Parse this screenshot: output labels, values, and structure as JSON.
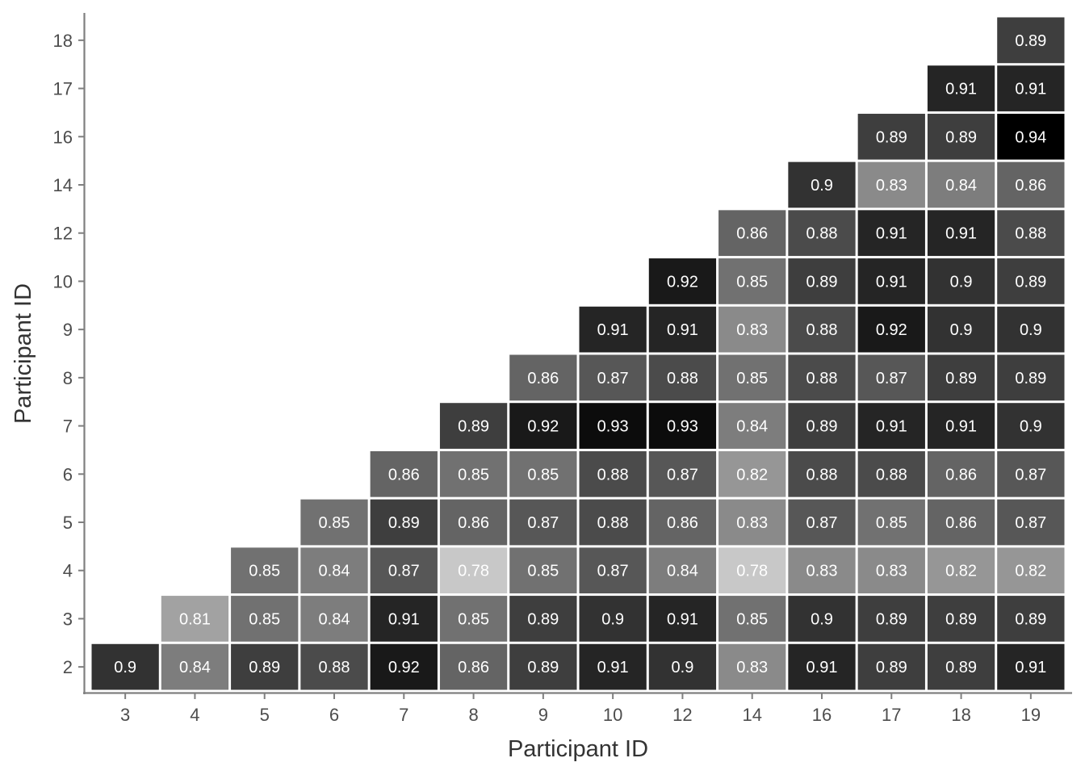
{
  "chart_data": {
    "type": "heatmap",
    "xlabel": "Participant ID",
    "ylabel": "Participant ID",
    "x_categories": [
      "3",
      "4",
      "5",
      "6",
      "7",
      "8",
      "9",
      "10",
      "12",
      "14",
      "16",
      "17",
      "18",
      "19"
    ],
    "y_categories": [
      "2",
      "3",
      "4",
      "5",
      "6",
      "7",
      "8",
      "9",
      "10",
      "12",
      "14",
      "16",
      "17",
      "18"
    ],
    "color_scale": "grayscale, darker = higher value",
    "grid": false,
    "legend": "none",
    "cells": [
      {
        "x": "3",
        "y": "2",
        "v": 0.9
      },
      {
        "x": "4",
        "y": "2",
        "v": 0.84
      },
      {
        "x": "4",
        "y": "3",
        "v": 0.81
      },
      {
        "x": "5",
        "y": "2",
        "v": 0.89
      },
      {
        "x": "5",
        "y": "3",
        "v": 0.85
      },
      {
        "x": "5",
        "y": "4",
        "v": 0.85
      },
      {
        "x": "6",
        "y": "2",
        "v": 0.88
      },
      {
        "x": "6",
        "y": "3",
        "v": 0.84
      },
      {
        "x": "6",
        "y": "4",
        "v": 0.84
      },
      {
        "x": "6",
        "y": "5",
        "v": 0.85
      },
      {
        "x": "7",
        "y": "2",
        "v": 0.92
      },
      {
        "x": "7",
        "y": "3",
        "v": 0.91
      },
      {
        "x": "7",
        "y": "4",
        "v": 0.87
      },
      {
        "x": "7",
        "y": "5",
        "v": 0.89
      },
      {
        "x": "7",
        "y": "6",
        "v": 0.86
      },
      {
        "x": "8",
        "y": "2",
        "v": 0.86
      },
      {
        "x": "8",
        "y": "3",
        "v": 0.85
      },
      {
        "x": "8",
        "y": "4",
        "v": 0.78
      },
      {
        "x": "8",
        "y": "5",
        "v": 0.86
      },
      {
        "x": "8",
        "y": "6",
        "v": 0.85
      },
      {
        "x": "8",
        "y": "7",
        "v": 0.89
      },
      {
        "x": "9",
        "y": "2",
        "v": 0.89
      },
      {
        "x": "9",
        "y": "3",
        "v": 0.89
      },
      {
        "x": "9",
        "y": "4",
        "v": 0.85
      },
      {
        "x": "9",
        "y": "5",
        "v": 0.87
      },
      {
        "x": "9",
        "y": "6",
        "v": 0.85
      },
      {
        "x": "9",
        "y": "7",
        "v": 0.92
      },
      {
        "x": "9",
        "y": "8",
        "v": 0.86
      },
      {
        "x": "10",
        "y": "2",
        "v": 0.91
      },
      {
        "x": "10",
        "y": "3",
        "v": 0.9
      },
      {
        "x": "10",
        "y": "4",
        "v": 0.87
      },
      {
        "x": "10",
        "y": "5",
        "v": 0.88
      },
      {
        "x": "10",
        "y": "6",
        "v": 0.88
      },
      {
        "x": "10",
        "y": "7",
        "v": 0.93
      },
      {
        "x": "10",
        "y": "8",
        "v": 0.87
      },
      {
        "x": "10",
        "y": "9",
        "v": 0.91
      },
      {
        "x": "12",
        "y": "2",
        "v": 0.9
      },
      {
        "x": "12",
        "y": "3",
        "v": 0.91
      },
      {
        "x": "12",
        "y": "4",
        "v": 0.84
      },
      {
        "x": "12",
        "y": "5",
        "v": 0.86
      },
      {
        "x": "12",
        "y": "6",
        "v": 0.87
      },
      {
        "x": "12",
        "y": "7",
        "v": 0.93
      },
      {
        "x": "12",
        "y": "8",
        "v": 0.88
      },
      {
        "x": "12",
        "y": "9",
        "v": 0.91
      },
      {
        "x": "12",
        "y": "10",
        "v": 0.92
      },
      {
        "x": "14",
        "y": "2",
        "v": 0.83
      },
      {
        "x": "14",
        "y": "3",
        "v": 0.85
      },
      {
        "x": "14",
        "y": "4",
        "v": 0.78
      },
      {
        "x": "14",
        "y": "5",
        "v": 0.83
      },
      {
        "x": "14",
        "y": "6",
        "v": 0.82
      },
      {
        "x": "14",
        "y": "7",
        "v": 0.84
      },
      {
        "x": "14",
        "y": "8",
        "v": 0.85
      },
      {
        "x": "14",
        "y": "9",
        "v": 0.83
      },
      {
        "x": "14",
        "y": "10",
        "v": 0.85
      },
      {
        "x": "14",
        "y": "12",
        "v": 0.86
      },
      {
        "x": "16",
        "y": "2",
        "v": 0.91
      },
      {
        "x": "16",
        "y": "3",
        "v": 0.9
      },
      {
        "x": "16",
        "y": "4",
        "v": 0.83
      },
      {
        "x": "16",
        "y": "5",
        "v": 0.87
      },
      {
        "x": "16",
        "y": "6",
        "v": 0.88
      },
      {
        "x": "16",
        "y": "7",
        "v": 0.89
      },
      {
        "x": "16",
        "y": "8",
        "v": 0.88
      },
      {
        "x": "16",
        "y": "9",
        "v": 0.88
      },
      {
        "x": "16",
        "y": "10",
        "v": 0.89
      },
      {
        "x": "16",
        "y": "12",
        "v": 0.88
      },
      {
        "x": "16",
        "y": "14",
        "v": 0.9
      },
      {
        "x": "17",
        "y": "2",
        "v": 0.89
      },
      {
        "x": "17",
        "y": "3",
        "v": 0.89
      },
      {
        "x": "17",
        "y": "4",
        "v": 0.83
      },
      {
        "x": "17",
        "y": "5",
        "v": 0.85
      },
      {
        "x": "17",
        "y": "6",
        "v": 0.88
      },
      {
        "x": "17",
        "y": "7",
        "v": 0.91
      },
      {
        "x": "17",
        "y": "8",
        "v": 0.87
      },
      {
        "x": "17",
        "y": "9",
        "v": 0.92
      },
      {
        "x": "17",
        "y": "10",
        "v": 0.91
      },
      {
        "x": "17",
        "y": "12",
        "v": 0.91
      },
      {
        "x": "17",
        "y": "14",
        "v": 0.83
      },
      {
        "x": "17",
        "y": "16",
        "v": 0.89
      },
      {
        "x": "18",
        "y": "2",
        "v": 0.89
      },
      {
        "x": "18",
        "y": "3",
        "v": 0.89
      },
      {
        "x": "18",
        "y": "4",
        "v": 0.82
      },
      {
        "x": "18",
        "y": "5",
        "v": 0.86
      },
      {
        "x": "18",
        "y": "6",
        "v": 0.86
      },
      {
        "x": "18",
        "y": "7",
        "v": 0.91
      },
      {
        "x": "18",
        "y": "8",
        "v": 0.89
      },
      {
        "x": "18",
        "y": "9",
        "v": 0.9
      },
      {
        "x": "18",
        "y": "10",
        "v": 0.9
      },
      {
        "x": "18",
        "y": "12",
        "v": 0.91
      },
      {
        "x": "18",
        "y": "14",
        "v": 0.84
      },
      {
        "x": "18",
        "y": "16",
        "v": 0.89
      },
      {
        "x": "18",
        "y": "17",
        "v": 0.91
      },
      {
        "x": "19",
        "y": "2",
        "v": 0.91
      },
      {
        "x": "19",
        "y": "3",
        "v": 0.89
      },
      {
        "x": "19",
        "y": "4",
        "v": 0.82
      },
      {
        "x": "19",
        "y": "5",
        "v": 0.87
      },
      {
        "x": "19",
        "y": "6",
        "v": 0.87
      },
      {
        "x": "19",
        "y": "7",
        "v": 0.9
      },
      {
        "x": "19",
        "y": "8",
        "v": 0.89
      },
      {
        "x": "19",
        "y": "9",
        "v": 0.9
      },
      {
        "x": "19",
        "y": "10",
        "v": 0.89
      },
      {
        "x": "19",
        "y": "12",
        "v": 0.88
      },
      {
        "x": "19",
        "y": "14",
        "v": 0.86
      },
      {
        "x": "19",
        "y": "16",
        "v": 0.94
      },
      {
        "x": "19",
        "y": "17",
        "v": 0.91
      },
      {
        "x": "19",
        "y": "18",
        "v": 0.89
      }
    ]
  }
}
